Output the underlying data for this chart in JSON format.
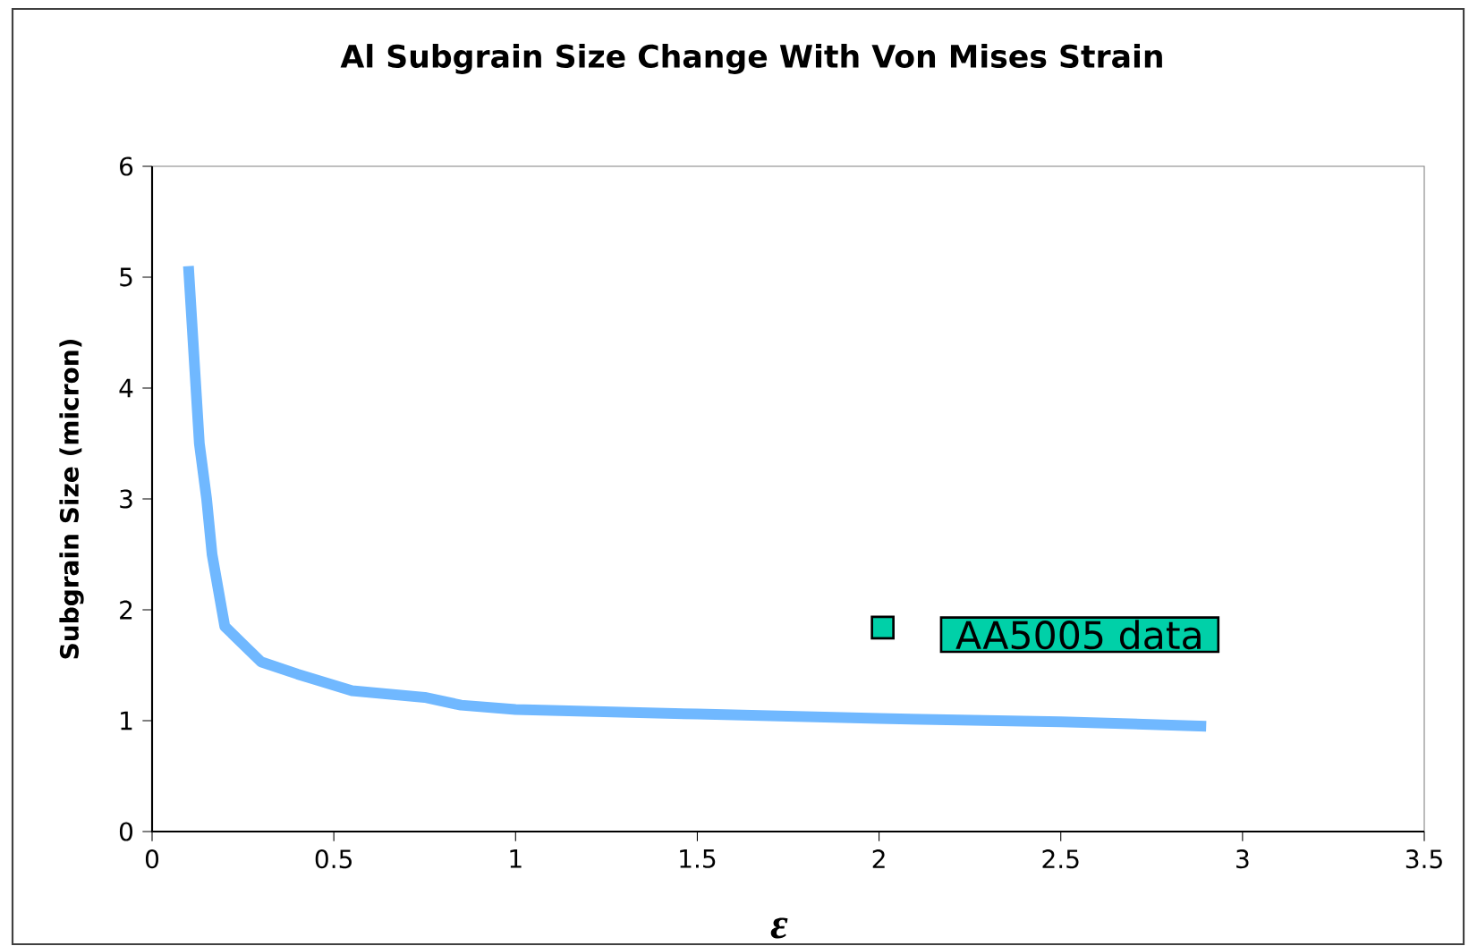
{
  "chart_data": {
    "type": "line",
    "title": "Al Subgrain Size Change With Von Mises Strain",
    "xlabel": "ε",
    "ylabel": "Subgrain Size (micron)",
    "xlim": [
      0,
      3.5
    ],
    "xticks": [
      0,
      0.5,
      1,
      1.5,
      2,
      2.5,
      3,
      3.5
    ],
    "ylim": [
      0,
      6
    ],
    "yticks": [
      0,
      1,
      2,
      3,
      4,
      5,
      6
    ],
    "grid": false,
    "marker": "none",
    "line_style": "solid",
    "series": [
      {
        "color": "#70b8ff",
        "x": [
          0.1,
          0.13,
          0.15,
          0.165,
          0.2,
          0.25,
          0.3,
          0.4,
          0.55,
          0.75,
          0.85,
          1.0,
          1.5,
          2.0,
          2.5,
          2.9
        ],
        "values": [
          5.1,
          3.5,
          3.0,
          2.5,
          1.85,
          1.69,
          1.53,
          1.42,
          1.27,
          1.21,
          1.14,
          1.1,
          1.06,
          1.02,
          0.99,
          0.95
        ]
      },
      {
        "type": "scatter",
        "name": "AA5005 data",
        "color": "#00d0a8",
        "marker": "square",
        "x": [
          2.01
        ],
        "values": [
          1.84
        ]
      }
    ]
  }
}
